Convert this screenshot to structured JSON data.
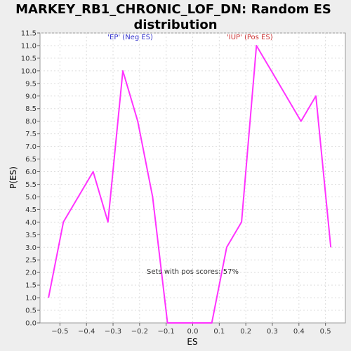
{
  "chart_data": {
    "type": "line",
    "title_lines": [
      "MARKEY_RB1_CHRONIC_LOF_DN: Random ES",
      "distribution"
    ],
    "xlabel": "ES",
    "ylabel": "P(ES)",
    "xlim": [
      -0.575,
      0.575
    ],
    "ylim": [
      0,
      11.5
    ],
    "x_ticks": [
      -0.5,
      -0.4,
      -0.3,
      -0.2,
      -0.1,
      0.0,
      0.1,
      0.2,
      0.3,
      0.4,
      0.5
    ],
    "x_tick_labels": [
      "−0.5",
      "−0.4",
      "−0.3",
      "−0.2",
      "−0.1",
      "0.0",
      "0.1",
      "0.2",
      "0.3",
      "0.4",
      "0.5"
    ],
    "y_ticks": [
      0,
      0.5,
      1,
      1.5,
      2,
      2.5,
      3,
      3.5,
      4,
      4.5,
      5,
      5.5,
      6,
      6.5,
      7,
      7.5,
      8,
      8.5,
      9,
      9.5,
      10,
      10.5,
      11,
      11.5
    ],
    "y_tick_labels": [
      "0.0",
      "0.5",
      "1.0",
      "1.5",
      "2.0",
      "2.5",
      "3.0",
      "3.5",
      "4.0",
      "4.5",
      "5.0",
      "5.5",
      "6.0",
      "6.5",
      "7.0",
      "7.5",
      "8.0",
      "8.5",
      "9.0",
      "9.5",
      "10.0",
      "10.5",
      "11.0",
      "11.5"
    ],
    "grid": true,
    "series": [
      {
        "color": "#ff33ff",
        "x": [
          -0.543,
          -0.487,
          -0.375,
          -0.319,
          -0.263,
          -0.207,
          -0.151,
          -0.095,
          -0.039,
          0.016,
          0.072,
          0.128,
          0.184,
          0.24,
          0.296,
          0.408,
          0.464,
          0.52
        ],
        "y": [
          1,
          4,
          6,
          4,
          10,
          8,
          5,
          0,
          0,
          0,
          0,
          3,
          4,
          11,
          10,
          8,
          9,
          3
        ]
      }
    ],
    "annotations": [
      {
        "text": "'EP' (Neg ES)",
        "x": -0.235,
        "y": 11.25,
        "color": "#3333cc"
      },
      {
        "text": "'IUP' (Pos ES)",
        "x": 0.215,
        "y": 11.25,
        "color": "#cc3333"
      },
      {
        "text": "Sets with pos scores: 57%",
        "x": 0.0,
        "y": 1.95,
        "color": "#333333"
      }
    ]
  },
  "colors": {
    "background": "#eeeeee",
    "plot_area": "#ffffff",
    "grid": "#dddddd",
    "line": "#ff33ff"
  }
}
